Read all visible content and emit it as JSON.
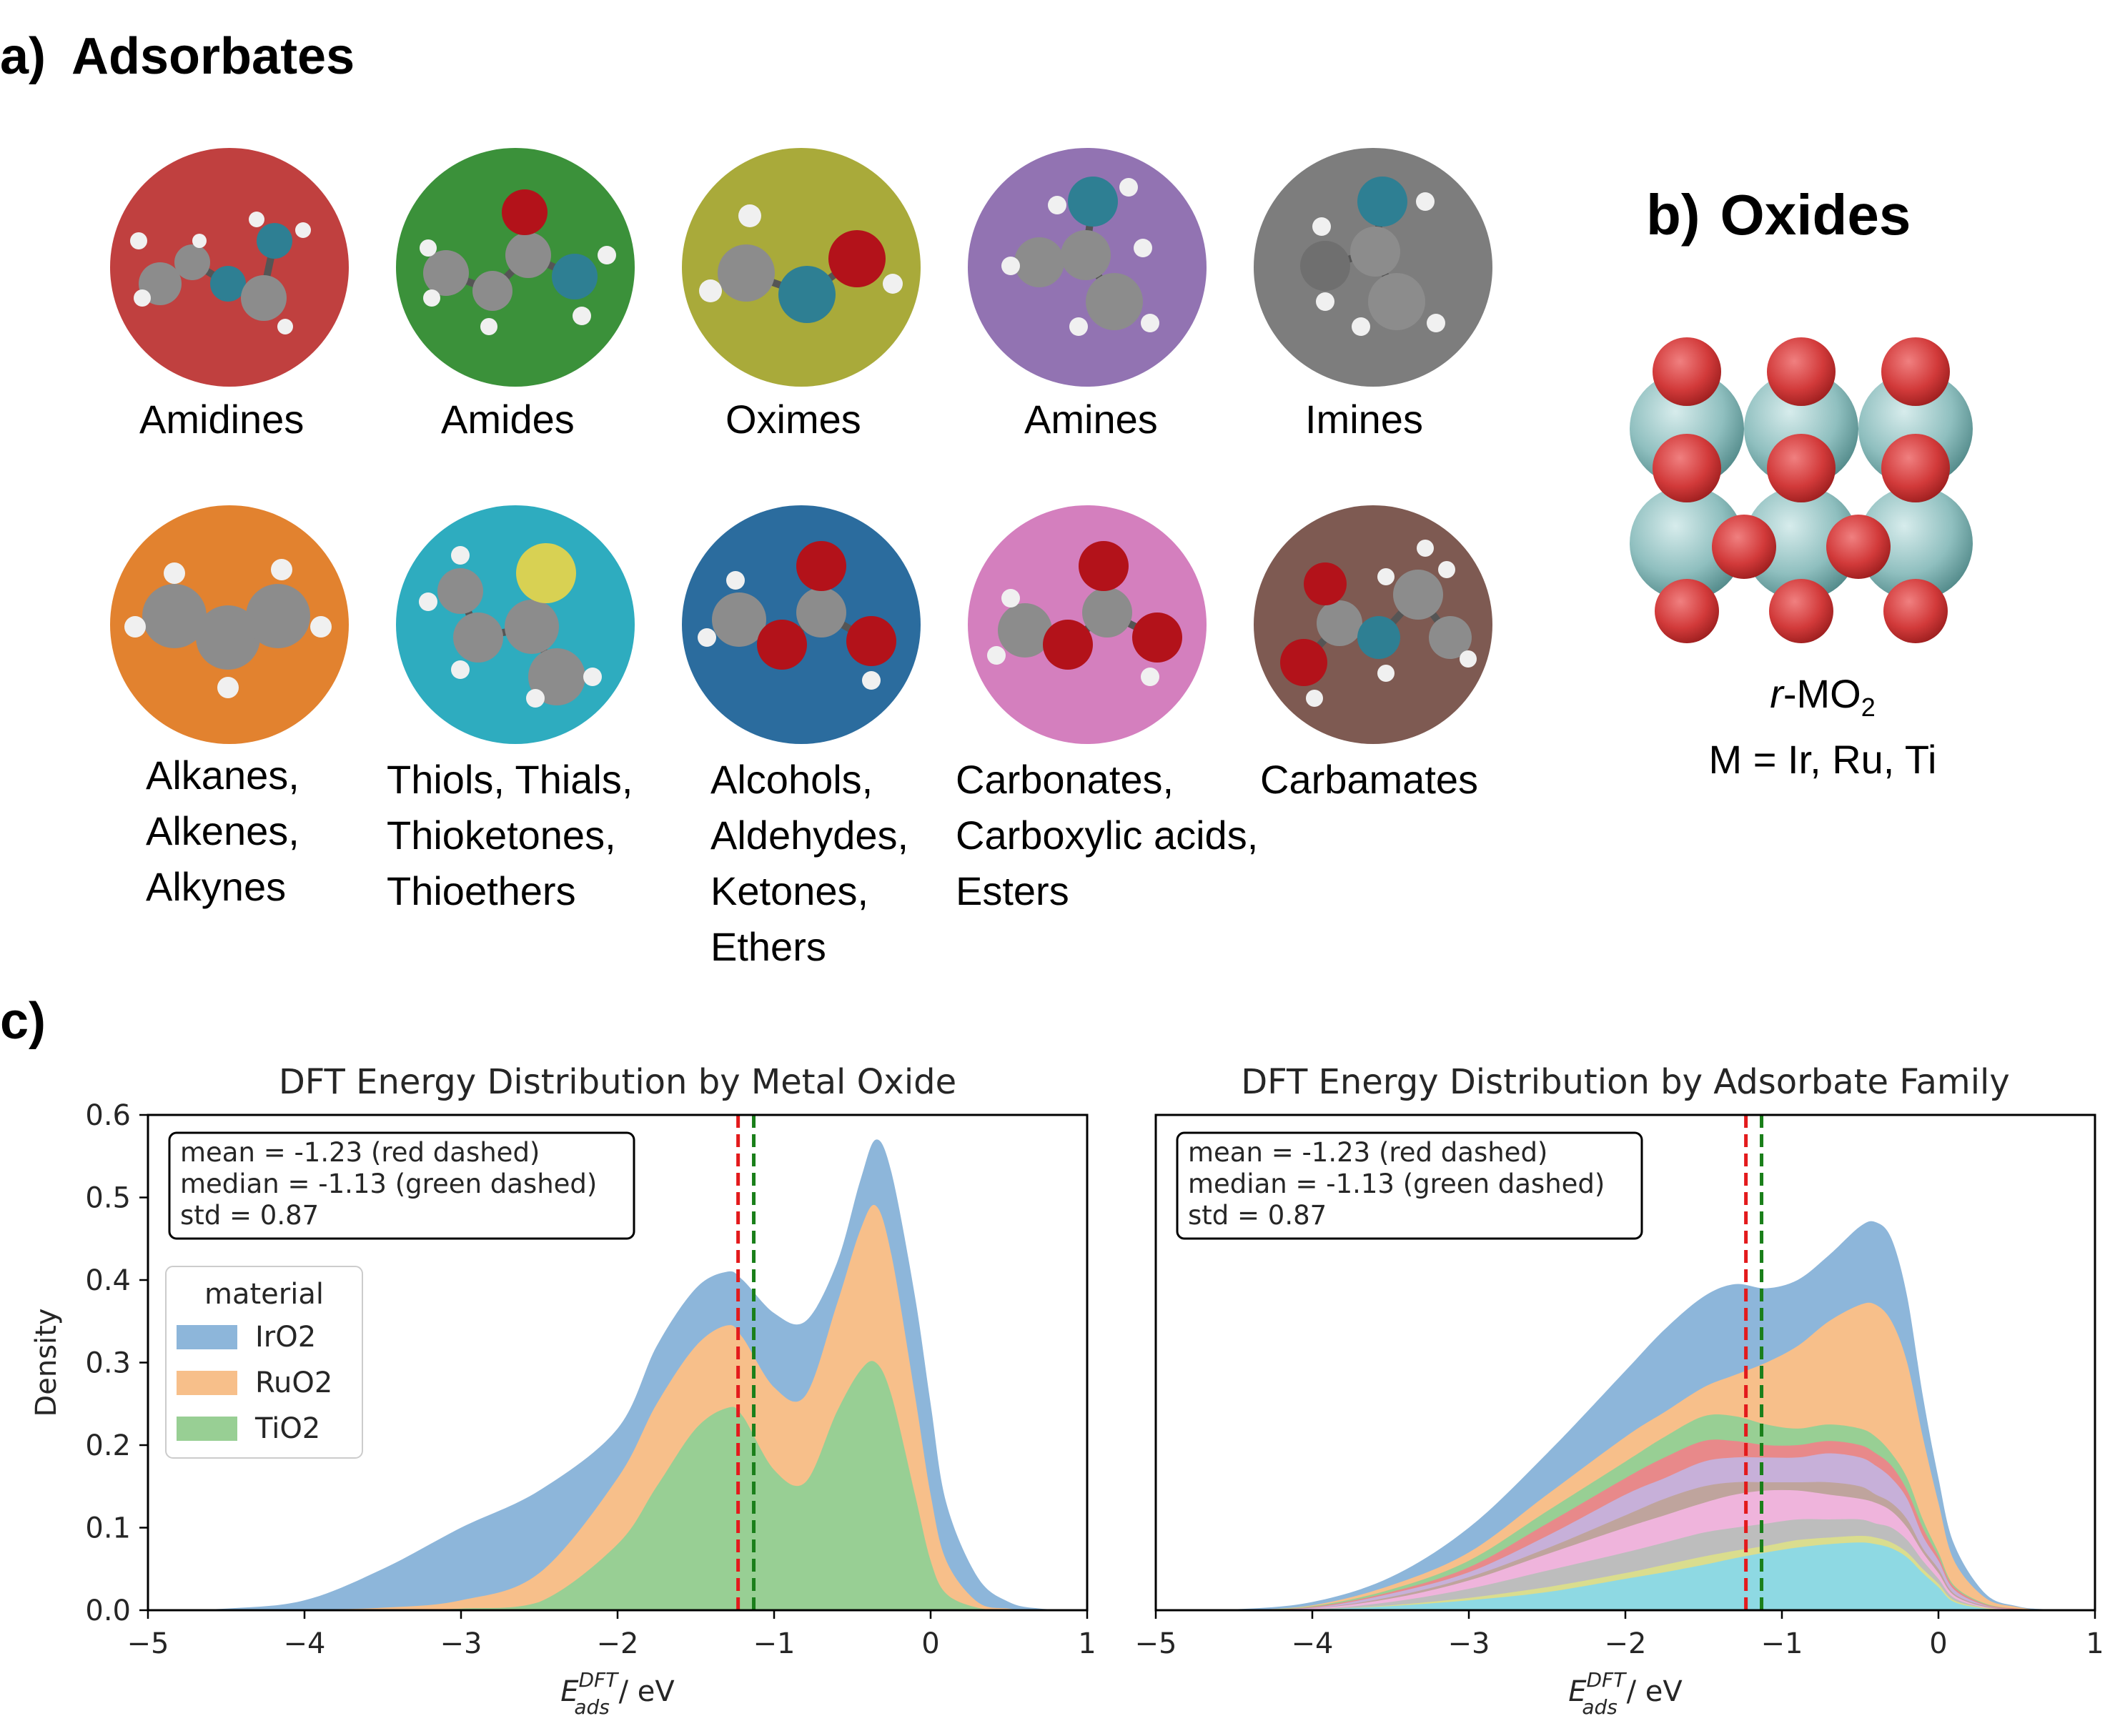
{
  "panel_a": {
    "label": "a)",
    "title": "Adsorbates",
    "families": [
      {
        "color": "#c0403f",
        "label_lines": [
          "Amidines"
        ]
      },
      {
        "color": "#3b913a",
        "label_lines": [
          "Amides"
        ]
      },
      {
        "color": "#a9aa3a",
        "label_lines": [
          "Oximes"
        ]
      },
      {
        "color": "#9273b2",
        "label_lines": [
          "Amines"
        ]
      },
      {
        "color": "#7d7d7d",
        "label_lines": [
          "Imines"
        ]
      },
      {
        "color": "#e2822f",
        "label_lines": [
          "Alkanes,",
          "Alkenes,",
          "Alkynes"
        ]
      },
      {
        "color": "#2eacbf",
        "label_lines": [
          "Thiols, Thials,",
          "Thioketones,",
          "Thioethers"
        ]
      },
      {
        "color": "#2b6c9e",
        "label_lines": [
          "Alcohols,",
          "Aldehydes,",
          "Ketones,",
          "Ethers"
        ]
      },
      {
        "color": "#d47fbe",
        "label_lines": [
          "Carbonates,",
          "Carboxylic acids,",
          "Esters"
        ]
      },
      {
        "color": "#7e5a52",
        "label_lines": [
          "Carbamates"
        ]
      }
    ]
  },
  "panel_b": {
    "label": "b)",
    "title": "Oxides",
    "formula_italic": "r",
    "formula_rest": "-MO",
    "formula_sub": "2",
    "metals": "M = Ir, Ru, Ti"
  },
  "panel_c": {
    "label": "c)"
  },
  "chart_data": [
    {
      "type": "area",
      "stacked": true,
      "title": "DFT Energy Distribution by Metal Oxide",
      "xlabel_main": "E",
      "xlabel_sup": "DFT",
      "xlabel_sub": "ads",
      "xlabel_unit": " / eV",
      "ylabel": "Density",
      "xlim": [
        -5,
        1
      ],
      "ylim": [
        0,
        0.6
      ],
      "xticks": [
        -5,
        -4,
        -3,
        -2,
        -1,
        0,
        1
      ],
      "xtick_labels": [
        "−5",
        "−4",
        "−3",
        "−2",
        "−1",
        "0",
        "1"
      ],
      "yticks": [
        0.0,
        0.1,
        0.2,
        0.3,
        0.4,
        0.5,
        0.6
      ],
      "ytick_labels": [
        "0.0",
        "0.1",
        "0.2",
        "0.3",
        "0.4",
        "0.5",
        "0.6"
      ],
      "grid": false,
      "stats_lines": [
        "mean = -1.23 (red dashed)",
        "median = -1.13 (green dashed)",
        "std = 0.87"
      ],
      "mean": -1.23,
      "median": -1.13,
      "mean_color": "#e31a1c",
      "median_color": "#1a7f1a",
      "legend": {
        "title": "material",
        "position": "left",
        "entries": [
          "IrO2",
          "RuO2",
          "TiO2"
        ]
      },
      "x": [
        -5.0,
        -4.5,
        -4.0,
        -3.5,
        -3.0,
        -2.5,
        -2.0,
        -1.75,
        -1.5,
        -1.3,
        -1.2,
        -1.0,
        -0.8,
        -0.6,
        -0.45,
        -0.35,
        -0.25,
        -0.1,
        0.0,
        0.1,
        0.3,
        0.5,
        0.7,
        1.0
      ],
      "series": [
        {
          "name": "IrO2",
          "color": "#8db6da",
          "cumulative": [
            0,
            0.002,
            0.012,
            0.05,
            0.1,
            0.145,
            0.22,
            0.32,
            0.39,
            0.41,
            0.4,
            0.36,
            0.35,
            0.42,
            0.52,
            0.57,
            0.53,
            0.38,
            0.25,
            0.13,
            0.04,
            0.01,
            0.002,
            0
          ]
        },
        {
          "name": "RuO2",
          "color": "#f7bf8a",
          "cumulative": [
            0,
            0,
            0.001,
            0.003,
            0.012,
            0.045,
            0.16,
            0.25,
            0.32,
            0.345,
            0.33,
            0.27,
            0.26,
            0.37,
            0.46,
            0.49,
            0.43,
            0.26,
            0.14,
            0.06,
            0.01,
            0.002,
            0,
            0
          ]
        },
        {
          "name": "TiO2",
          "color": "#98cf94",
          "cumulative": [
            0,
            0,
            0,
            0,
            0.002,
            0.01,
            0.08,
            0.15,
            0.22,
            0.245,
            0.235,
            0.17,
            0.155,
            0.24,
            0.29,
            0.3,
            0.26,
            0.14,
            0.06,
            0.02,
            0.003,
            0,
            0,
            0
          ]
        }
      ]
    },
    {
      "type": "area",
      "stacked": true,
      "title": "DFT Energy Distribution by Adsorbate Family",
      "xlabel_main": "E",
      "xlabel_sup": "DFT",
      "xlabel_sub": "ads",
      "xlabel_unit": " / eV",
      "xlim": [
        -5,
        1
      ],
      "ylim": [
        0,
        0.6
      ],
      "xticks": [
        -5,
        -4,
        -3,
        -2,
        -1,
        0,
        1
      ],
      "xtick_labels": [
        "−5",
        "−4",
        "−3",
        "−2",
        "−1",
        "0",
        "1"
      ],
      "grid": false,
      "stats_lines": [
        "mean = -1.23 (red dashed)",
        "median = -1.13 (green dashed)",
        "std = 0.87"
      ],
      "mean": -1.23,
      "median": -1.13,
      "mean_color": "#e31a1c",
      "median_color": "#1a7f1a",
      "x": [
        -5.0,
        -4.5,
        -4.0,
        -3.5,
        -3.0,
        -2.5,
        -2.0,
        -1.75,
        -1.5,
        -1.3,
        -1.1,
        -0.9,
        -0.7,
        -0.5,
        -0.4,
        -0.3,
        -0.2,
        -0.1,
        0.0,
        0.1,
        0.3,
        0.5,
        0.7,
        1.0
      ],
      "series": [
        {
          "color": "#8db6da",
          "cumulative": [
            0,
            0.001,
            0.01,
            0.04,
            0.1,
            0.19,
            0.29,
            0.34,
            0.38,
            0.395,
            0.39,
            0.4,
            0.43,
            0.465,
            0.47,
            0.45,
            0.38,
            0.26,
            0.16,
            0.08,
            0.02,
            0.005,
            0.001,
            0
          ]
        },
        {
          "color": "#f7bf8a",
          "cumulative": [
            0,
            0,
            0.006,
            0.03,
            0.07,
            0.14,
            0.21,
            0.24,
            0.27,
            0.285,
            0.3,
            0.32,
            0.35,
            0.37,
            0.37,
            0.35,
            0.3,
            0.21,
            0.13,
            0.06,
            0.015,
            0.004,
            0,
            0
          ]
        },
        {
          "color": "#98cf94",
          "cumulative": [
            0,
            0,
            0.005,
            0.025,
            0.06,
            0.12,
            0.18,
            0.21,
            0.235,
            0.235,
            0.225,
            0.22,
            0.225,
            0.22,
            0.21,
            0.19,
            0.16,
            0.11,
            0.07,
            0.03,
            0.008,
            0.002,
            0,
            0
          ]
        },
        {
          "color": "#e8898a",
          "cumulative": [
            0,
            0,
            0.004,
            0.022,
            0.052,
            0.105,
            0.16,
            0.185,
            0.205,
            0.205,
            0.2,
            0.2,
            0.205,
            0.2,
            0.19,
            0.175,
            0.145,
            0.1,
            0.065,
            0.028,
            0.007,
            0.002,
            0,
            0
          ]
        },
        {
          "color": "#c7b0d9",
          "cumulative": [
            0,
            0,
            0.003,
            0.02,
            0.046,
            0.09,
            0.14,
            0.16,
            0.18,
            0.185,
            0.185,
            0.185,
            0.19,
            0.185,
            0.175,
            0.16,
            0.135,
            0.09,
            0.06,
            0.025,
            0.006,
            0.001,
            0,
            0
          ]
        },
        {
          "color": "#bfa49d",
          "cumulative": [
            0,
            0,
            0.002,
            0.016,
            0.04,
            0.075,
            0.115,
            0.135,
            0.15,
            0.155,
            0.155,
            0.155,
            0.155,
            0.15,
            0.14,
            0.13,
            0.11,
            0.075,
            0.05,
            0.02,
            0.005,
            0.001,
            0,
            0
          ]
        },
        {
          "color": "#efb4dc",
          "cumulative": [
            0,
            0,
            0.002,
            0.014,
            0.036,
            0.068,
            0.1,
            0.115,
            0.13,
            0.14,
            0.145,
            0.145,
            0.14,
            0.135,
            0.13,
            0.12,
            0.1,
            0.07,
            0.045,
            0.018,
            0.004,
            0.001,
            0,
            0
          ]
        },
        {
          "color": "#bdbdbd",
          "cumulative": [
            0,
            0,
            0.001,
            0.01,
            0.026,
            0.048,
            0.07,
            0.082,
            0.094,
            0.1,
            0.105,
            0.11,
            0.11,
            0.11,
            0.105,
            0.1,
            0.085,
            0.06,
            0.038,
            0.015,
            0.003,
            0,
            0,
            0
          ]
        },
        {
          "color": "#dadd8e",
          "cumulative": [
            0,
            0,
            0.001,
            0.006,
            0.015,
            0.028,
            0.045,
            0.055,
            0.065,
            0.072,
            0.078,
            0.085,
            0.088,
            0.09,
            0.088,
            0.082,
            0.07,
            0.05,
            0.032,
            0.012,
            0.003,
            0,
            0,
            0
          ]
        },
        {
          "color": "#8ed9e3",
          "cumulative": [
            0,
            0,
            0.001,
            0.005,
            0.012,
            0.022,
            0.038,
            0.046,
            0.055,
            0.063,
            0.07,
            0.076,
            0.08,
            0.082,
            0.08,
            0.075,
            0.064,
            0.045,
            0.028,
            0.01,
            0.002,
            0,
            0,
            0
          ]
        }
      ]
    }
  ]
}
